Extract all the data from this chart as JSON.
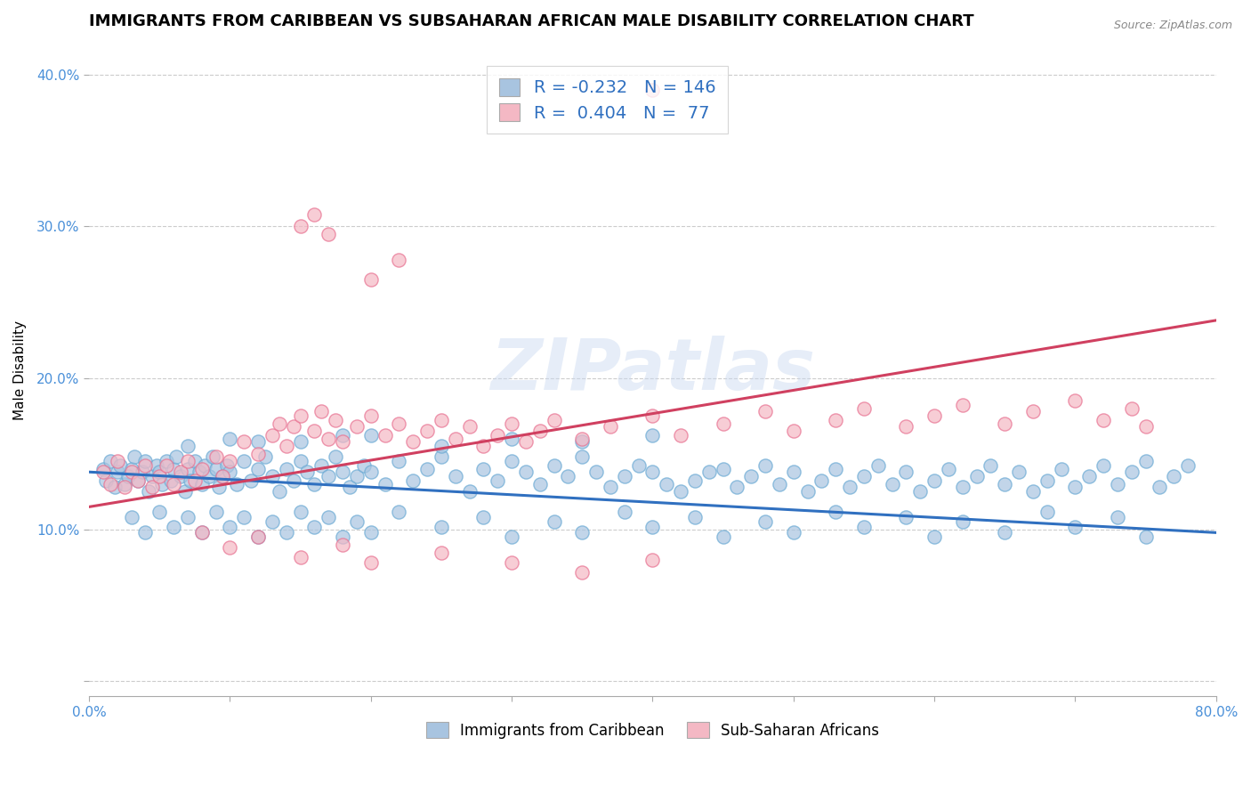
{
  "title": "IMMIGRANTS FROM CARIBBEAN VS SUBSAHARAN AFRICAN MALE DISABILITY CORRELATION CHART",
  "source": "Source: ZipAtlas.com",
  "ylabel": "Male Disability",
  "watermark": "ZIPatlas",
  "xlim": [
    0.0,
    0.8
  ],
  "ylim": [
    -0.01,
    0.42
  ],
  "xticks": [
    0.0,
    0.1,
    0.2,
    0.3,
    0.4,
    0.5,
    0.6,
    0.7,
    0.8
  ],
  "yticks": [
    0.0,
    0.1,
    0.2,
    0.3,
    0.4
  ],
  "blue_R": -0.232,
  "blue_N": 146,
  "pink_R": 0.404,
  "pink_N": 77,
  "blue_color": "#a8c4e0",
  "blue_edge_color": "#6aaad4",
  "pink_color": "#f4b8c4",
  "pink_edge_color": "#e87090",
  "blue_line_color": "#3070c0",
  "pink_line_color": "#d04060",
  "legend_label_blue": "Immigrants from Caribbean",
  "legend_label_pink": "Sub-Saharan Africans",
  "title_fontsize": 13,
  "axis_label_fontsize": 11,
  "tick_fontsize": 11,
  "blue_trendline": [
    [
      0.0,
      0.138
    ],
    [
      0.8,
      0.098
    ]
  ],
  "pink_trendline": [
    [
      0.0,
      0.115
    ],
    [
      0.8,
      0.238
    ]
  ],
  "blue_scatter": [
    [
      0.01,
      0.14
    ],
    [
      0.012,
      0.132
    ],
    [
      0.015,
      0.145
    ],
    [
      0.018,
      0.128
    ],
    [
      0.02,
      0.138
    ],
    [
      0.022,
      0.142
    ],
    [
      0.025,
      0.13
    ],
    [
      0.028,
      0.135
    ],
    [
      0.03,
      0.14
    ],
    [
      0.032,
      0.148
    ],
    [
      0.035,
      0.132
    ],
    [
      0.038,
      0.138
    ],
    [
      0.04,
      0.145
    ],
    [
      0.042,
      0.125
    ],
    [
      0.045,
      0.135
    ],
    [
      0.048,
      0.142
    ],
    [
      0.05,
      0.138
    ],
    [
      0.052,
      0.13
    ],
    [
      0.055,
      0.145
    ],
    [
      0.058,
      0.132
    ],
    [
      0.06,
      0.14
    ],
    [
      0.062,
      0.148
    ],
    [
      0.065,
      0.135
    ],
    [
      0.068,
      0.125
    ],
    [
      0.07,
      0.14
    ],
    [
      0.072,
      0.132
    ],
    [
      0.075,
      0.145
    ],
    [
      0.078,
      0.138
    ],
    [
      0.08,
      0.13
    ],
    [
      0.082,
      0.142
    ],
    [
      0.085,
      0.135
    ],
    [
      0.088,
      0.148
    ],
    [
      0.09,
      0.14
    ],
    [
      0.092,
      0.128
    ],
    [
      0.095,
      0.135
    ],
    [
      0.098,
      0.142
    ],
    [
      0.1,
      0.138
    ],
    [
      0.105,
      0.13
    ],
    [
      0.11,
      0.145
    ],
    [
      0.115,
      0.132
    ],
    [
      0.12,
      0.14
    ],
    [
      0.125,
      0.148
    ],
    [
      0.13,
      0.135
    ],
    [
      0.135,
      0.125
    ],
    [
      0.14,
      0.14
    ],
    [
      0.145,
      0.132
    ],
    [
      0.15,
      0.145
    ],
    [
      0.155,
      0.138
    ],
    [
      0.16,
      0.13
    ],
    [
      0.165,
      0.142
    ],
    [
      0.17,
      0.135
    ],
    [
      0.175,
      0.148
    ],
    [
      0.18,
      0.138
    ],
    [
      0.185,
      0.128
    ],
    [
      0.19,
      0.135
    ],
    [
      0.195,
      0.142
    ],
    [
      0.2,
      0.138
    ],
    [
      0.21,
      0.13
    ],
    [
      0.22,
      0.145
    ],
    [
      0.23,
      0.132
    ],
    [
      0.24,
      0.14
    ],
    [
      0.25,
      0.148
    ],
    [
      0.26,
      0.135
    ],
    [
      0.27,
      0.125
    ],
    [
      0.28,
      0.14
    ],
    [
      0.29,
      0.132
    ],
    [
      0.3,
      0.145
    ],
    [
      0.31,
      0.138
    ],
    [
      0.32,
      0.13
    ],
    [
      0.33,
      0.142
    ],
    [
      0.34,
      0.135
    ],
    [
      0.35,
      0.148
    ],
    [
      0.36,
      0.138
    ],
    [
      0.37,
      0.128
    ],
    [
      0.38,
      0.135
    ],
    [
      0.39,
      0.142
    ],
    [
      0.4,
      0.138
    ],
    [
      0.41,
      0.13
    ],
    [
      0.42,
      0.125
    ],
    [
      0.43,
      0.132
    ],
    [
      0.44,
      0.138
    ],
    [
      0.45,
      0.14
    ],
    [
      0.46,
      0.128
    ],
    [
      0.47,
      0.135
    ],
    [
      0.48,
      0.142
    ],
    [
      0.49,
      0.13
    ],
    [
      0.5,
      0.138
    ],
    [
      0.51,
      0.125
    ],
    [
      0.52,
      0.132
    ],
    [
      0.53,
      0.14
    ],
    [
      0.54,
      0.128
    ],
    [
      0.55,
      0.135
    ],
    [
      0.56,
      0.142
    ],
    [
      0.57,
      0.13
    ],
    [
      0.58,
      0.138
    ],
    [
      0.59,
      0.125
    ],
    [
      0.6,
      0.132
    ],
    [
      0.61,
      0.14
    ],
    [
      0.62,
      0.128
    ],
    [
      0.63,
      0.135
    ],
    [
      0.64,
      0.142
    ],
    [
      0.65,
      0.13
    ],
    [
      0.66,
      0.138
    ],
    [
      0.67,
      0.125
    ],
    [
      0.68,
      0.132
    ],
    [
      0.69,
      0.14
    ],
    [
      0.7,
      0.128
    ],
    [
      0.71,
      0.135
    ],
    [
      0.72,
      0.142
    ],
    [
      0.73,
      0.13
    ],
    [
      0.74,
      0.138
    ],
    [
      0.75,
      0.145
    ],
    [
      0.76,
      0.128
    ],
    [
      0.77,
      0.135
    ],
    [
      0.78,
      0.142
    ],
    [
      0.03,
      0.108
    ],
    [
      0.04,
      0.098
    ],
    [
      0.05,
      0.112
    ],
    [
      0.06,
      0.102
    ],
    [
      0.07,
      0.108
    ],
    [
      0.08,
      0.098
    ],
    [
      0.09,
      0.112
    ],
    [
      0.1,
      0.102
    ],
    [
      0.11,
      0.108
    ],
    [
      0.12,
      0.095
    ],
    [
      0.13,
      0.105
    ],
    [
      0.14,
      0.098
    ],
    [
      0.15,
      0.112
    ],
    [
      0.16,
      0.102
    ],
    [
      0.17,
      0.108
    ],
    [
      0.18,
      0.095
    ],
    [
      0.19,
      0.105
    ],
    [
      0.2,
      0.098
    ],
    [
      0.22,
      0.112
    ],
    [
      0.25,
      0.102
    ],
    [
      0.28,
      0.108
    ],
    [
      0.3,
      0.095
    ],
    [
      0.33,
      0.105
    ],
    [
      0.35,
      0.098
    ],
    [
      0.38,
      0.112
    ],
    [
      0.4,
      0.102
    ],
    [
      0.43,
      0.108
    ],
    [
      0.45,
      0.095
    ],
    [
      0.48,
      0.105
    ],
    [
      0.5,
      0.098
    ],
    [
      0.53,
      0.112
    ],
    [
      0.55,
      0.102
    ],
    [
      0.58,
      0.108
    ],
    [
      0.6,
      0.095
    ],
    [
      0.62,
      0.105
    ],
    [
      0.65,
      0.098
    ],
    [
      0.68,
      0.112
    ],
    [
      0.7,
      0.102
    ],
    [
      0.73,
      0.108
    ],
    [
      0.75,
      0.095
    ],
    [
      0.1,
      0.16
    ],
    [
      0.15,
      0.158
    ],
    [
      0.2,
      0.162
    ],
    [
      0.25,
      0.155
    ],
    [
      0.3,
      0.16
    ],
    [
      0.35,
      0.158
    ],
    [
      0.4,
      0.162
    ],
    [
      0.07,
      0.155
    ],
    [
      0.12,
      0.158
    ],
    [
      0.18,
      0.162
    ]
  ],
  "pink_scatter": [
    [
      0.01,
      0.138
    ],
    [
      0.015,
      0.13
    ],
    [
      0.02,
      0.145
    ],
    [
      0.025,
      0.128
    ],
    [
      0.03,
      0.138
    ],
    [
      0.035,
      0.132
    ],
    [
      0.04,
      0.142
    ],
    [
      0.045,
      0.128
    ],
    [
      0.05,
      0.135
    ],
    [
      0.055,
      0.142
    ],
    [
      0.06,
      0.13
    ],
    [
      0.065,
      0.138
    ],
    [
      0.07,
      0.145
    ],
    [
      0.075,
      0.132
    ],
    [
      0.08,
      0.14
    ],
    [
      0.09,
      0.148
    ],
    [
      0.095,
      0.135
    ],
    [
      0.1,
      0.145
    ],
    [
      0.11,
      0.158
    ],
    [
      0.12,
      0.15
    ],
    [
      0.13,
      0.162
    ],
    [
      0.135,
      0.17
    ],
    [
      0.14,
      0.155
    ],
    [
      0.145,
      0.168
    ],
    [
      0.15,
      0.175
    ],
    [
      0.16,
      0.165
    ],
    [
      0.165,
      0.178
    ],
    [
      0.17,
      0.16
    ],
    [
      0.175,
      0.172
    ],
    [
      0.18,
      0.158
    ],
    [
      0.19,
      0.168
    ],
    [
      0.2,
      0.175
    ],
    [
      0.21,
      0.162
    ],
    [
      0.22,
      0.17
    ],
    [
      0.23,
      0.158
    ],
    [
      0.24,
      0.165
    ],
    [
      0.25,
      0.172
    ],
    [
      0.26,
      0.16
    ],
    [
      0.27,
      0.168
    ],
    [
      0.28,
      0.155
    ],
    [
      0.29,
      0.162
    ],
    [
      0.3,
      0.17
    ],
    [
      0.31,
      0.158
    ],
    [
      0.32,
      0.165
    ],
    [
      0.33,
      0.172
    ],
    [
      0.35,
      0.16
    ],
    [
      0.37,
      0.168
    ],
    [
      0.4,
      0.175
    ],
    [
      0.42,
      0.162
    ],
    [
      0.45,
      0.17
    ],
    [
      0.48,
      0.178
    ],
    [
      0.5,
      0.165
    ],
    [
      0.53,
      0.172
    ],
    [
      0.55,
      0.18
    ],
    [
      0.58,
      0.168
    ],
    [
      0.6,
      0.175
    ],
    [
      0.62,
      0.182
    ],
    [
      0.65,
      0.17
    ],
    [
      0.67,
      0.178
    ],
    [
      0.7,
      0.185
    ],
    [
      0.72,
      0.172
    ],
    [
      0.74,
      0.18
    ],
    [
      0.75,
      0.168
    ],
    [
      0.08,
      0.098
    ],
    [
      0.1,
      0.088
    ],
    [
      0.12,
      0.095
    ],
    [
      0.15,
      0.082
    ],
    [
      0.18,
      0.09
    ],
    [
      0.2,
      0.078
    ],
    [
      0.25,
      0.085
    ],
    [
      0.3,
      0.078
    ],
    [
      0.35,
      0.072
    ],
    [
      0.4,
      0.08
    ],
    [
      0.15,
      0.3
    ],
    [
      0.16,
      0.308
    ],
    [
      0.17,
      0.295
    ],
    [
      0.2,
      0.265
    ],
    [
      0.22,
      0.278
    ],
    [
      0.4,
      0.39
    ]
  ]
}
